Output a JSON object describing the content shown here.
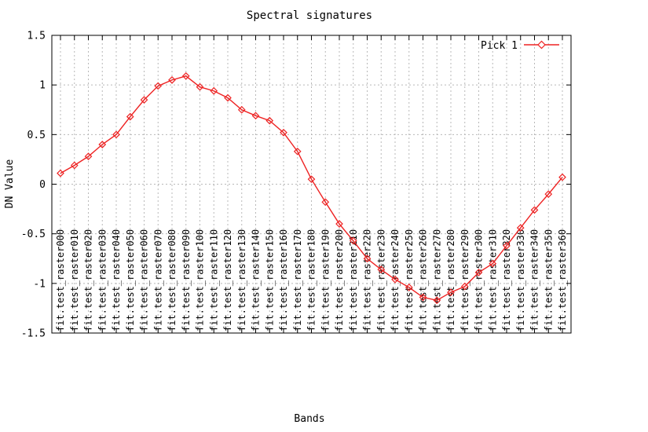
{
  "chart_data": {
    "type": "line",
    "title": "Spectral signatures",
    "xlabel": "Bands",
    "ylabel": "DN Value",
    "ylim": [
      -1.5,
      1.5
    ],
    "yticks": [
      1.5,
      1,
      0.5,
      0,
      -0.5,
      -1,
      -1.5
    ],
    "ytick_labels": [
      "1.5",
      "1",
      "0.5",
      "0",
      "-0.5",
      "-1",
      "-1.5"
    ],
    "grid": true,
    "legend_position": "top-right-inside",
    "categories": [
      "fit.test_raster000",
      "fit.test_raster010",
      "fit.test_raster020",
      "fit.test_raster030",
      "fit.test_raster040",
      "fit.test_raster050",
      "fit.test_raster060",
      "fit.test_raster070",
      "fit.test_raster080",
      "fit.test_raster090",
      "fit.test_raster100",
      "fit.test_raster110",
      "fit.test_raster120",
      "fit.test_raster130",
      "fit.test_raster140",
      "fit.test_raster150",
      "fit.test_raster160",
      "fit.test_raster170",
      "fit.test_raster180",
      "fit.test_raster190",
      "fit.test_raster200",
      "fit.test_raster210",
      "fit.test_raster220",
      "fit.test_raster230",
      "fit.test_raster240",
      "fit.test_raster250",
      "fit.test_raster260",
      "fit.test_raster270",
      "fit.test_raster280",
      "fit.test_raster290",
      "fit.test_raster300",
      "fit.test_raster310",
      "fit.test_raster320",
      "fit.test_raster330",
      "fit.test_raster340",
      "fit.test_raster350",
      "fit.test_raster360"
    ],
    "series": [
      {
        "name": "Pick 1",
        "marker": "open-diamond",
        "values": [
          0.11,
          0.19,
          0.28,
          0.4,
          0.5,
          0.68,
          0.85,
          0.99,
          1.05,
          1.09,
          0.98,
          0.94,
          0.87,
          0.75,
          0.69,
          0.64,
          0.52,
          0.33,
          0.05,
          -0.18,
          -0.4,
          -0.57,
          -0.75,
          -0.86,
          -0.96,
          -1.04,
          -1.14,
          -1.17,
          -1.09,
          -1.03,
          -0.89,
          -0.8,
          -0.62,
          -0.44,
          -0.26,
          -0.1,
          0.07
        ]
      }
    ]
  },
  "colors": {
    "background": "#ffffff",
    "plot_border": "#000000",
    "grid": "#b8b8b8",
    "text": "#000000",
    "series_red": "#ee2222"
  }
}
